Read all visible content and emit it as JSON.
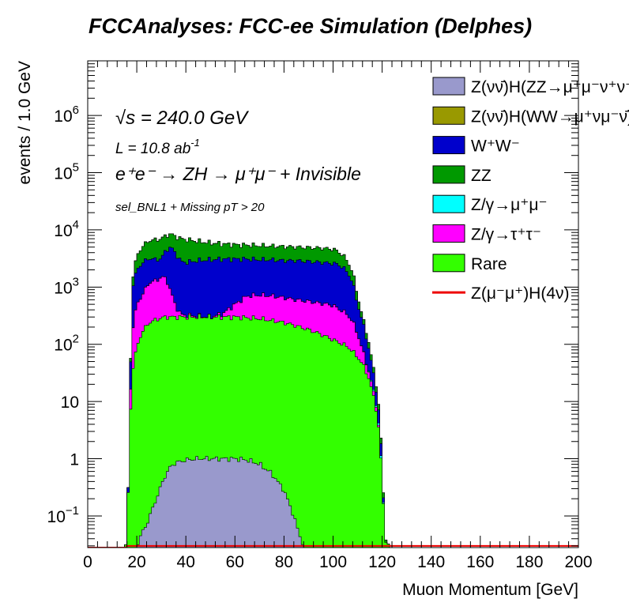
{
  "title": "FCCAnalyses: FCC-ee Simulation (Delphes)",
  "chart_data": {
    "type": "stacked-histogram",
    "xlabel": "Muon Momentum [GeV]",
    "ylabel": "events / 1.0 GeV",
    "xlim": [
      0,
      200
    ],
    "ylim": [
      0.028,
      9000000
    ],
    "yscale": "log",
    "x_ticks": [
      "0",
      "20",
      "40",
      "60",
      "80",
      "100",
      "120",
      "140",
      "160",
      "180",
      "200"
    ],
    "y_ticks": [
      {
        "value": 0.1,
        "base": "10",
        "exp": "−1"
      },
      {
        "value": 1,
        "base": "1",
        "exp": ""
      },
      {
        "value": 10,
        "base": "10",
        "exp": ""
      },
      {
        "value": 100,
        "base": "10",
        "exp": "2"
      },
      {
        "value": 1000,
        "base": "10",
        "exp": "3"
      },
      {
        "value": 10000,
        "base": "10",
        "exp": "4"
      },
      {
        "value": 100000,
        "base": "10",
        "exp": "5"
      },
      {
        "value": 1000000,
        "base": "10",
        "exp": "6"
      }
    ],
    "annotations": {
      "sqrt_s": "√s = 240.0 GeV",
      "lumi": "L = 10.8 ab",
      "lumi_exp": "-1",
      "process": "e⁺e⁻ → ZH → μ⁺μ⁻ + Invisible",
      "selection": "sel_BNL1 + Missing pT > 20"
    },
    "x_nodes": [
      16,
      17,
      18,
      20,
      22,
      25,
      28,
      30,
      32,
      34,
      36,
      38,
      40,
      45,
      50,
      55,
      60,
      65,
      70,
      75,
      80,
      85,
      90,
      95,
      100,
      102,
      104,
      106,
      108,
      110,
      112,
      114,
      116,
      118,
      119,
      120,
      121,
      122
    ],
    "stack_tops": [
      {
        "name": "Rare",
        "color": "#33ff00",
        "values": [
          0.03,
          2,
          30,
          90,
          160,
          240,
          270,
          290,
          300,
          300,
          300,
          300,
          300,
          300,
          300,
          300,
          300,
          290,
          280,
          260,
          240,
          210,
          180,
          150,
          120,
          110,
          100,
          90,
          75,
          60,
          45,
          30,
          15,
          6,
          2,
          0.5,
          0.05,
          0.03
        ]
      },
      {
        "name": "Z/γ→τ⁺τ⁻",
        "color": "#ff00ff",
        "values": [
          0.03,
          2,
          150,
          500,
          700,
          1200,
          1300,
          1500,
          1400,
          800,
          450,
          330,
          320,
          310,
          300,
          340,
          500,
          700,
          720,
          700,
          650,
          600,
          560,
          520,
          480,
          420,
          380,
          320,
          250,
          150,
          80,
          40,
          18,
          7,
          2,
          0.5,
          0.05,
          0.03
        ]
      },
      {
        "name": "Z/γ→μ⁺μ⁻",
        "color": "#00ffff",
        "values": [
          0.03,
          2,
          151,
          501,
          701,
          1201,
          1301,
          1501,
          1401,
          801,
          451,
          331,
          321,
          311,
          301,
          341,
          501,
          701,
          721,
          701,
          651,
          601,
          561,
          521,
          481,
          421,
          381,
          321,
          251,
          151,
          81,
          41,
          19,
          7.5,
          2.2,
          0.55,
          0.05,
          0.03
        ]
      },
      {
        "name": "W⁺W⁻",
        "color": "#0000cc",
        "values": [
          0.03,
          3,
          900,
          2000,
          2600,
          3200,
          3000,
          3200,
          4500,
          5000,
          3800,
          2800,
          2700,
          2900,
          3000,
          3100,
          3100,
          3100,
          3000,
          3000,
          2900,
          2900,
          2800,
          2700,
          2600,
          2500,
          2200,
          1800,
          1200,
          500,
          250,
          110,
          40,
          12,
          4,
          0.8,
          0.05,
          0.03
        ]
      },
      {
        "name": "ZZ",
        "color": "#009900",
        "values": [
          0.03,
          3,
          1200,
          3500,
          5000,
          6500,
          6700,
          7000,
          8000,
          8500,
          7600,
          7000,
          6800,
          6300,
          5900,
          5700,
          5500,
          5400,
          5300,
          5200,
          5100,
          5000,
          4900,
          4800,
          4600,
          4200,
          3600,
          2800,
          1800,
          700,
          300,
          140,
          50,
          15,
          5,
          1,
          0.06,
          0.03
        ]
      },
      {
        "name": "Z(νν̄)H(WW→μ⁺νμ⁻ν̄)",
        "color": "#999900",
        "values": [
          0.03,
          3,
          1200,
          3500,
          5000,
          6500,
          6700,
          7000,
          8000,
          8500,
          7600,
          7000,
          6800,
          6300,
          5900,
          5700,
          5500,
          5400,
          5300,
          5200,
          5100,
          5000,
          4900,
          4800,
          4600,
          4200,
          3600,
          2800,
          1800,
          700,
          300,
          140,
          50,
          15,
          5,
          1,
          0.06,
          0.03
        ]
      },
      {
        "name": "Z(νν̄)H(ZZ→μ⁺μ⁻ν⁺ν⁻)",
        "color": "#9999cc",
        "values": [
          0.03,
          3,
          1200,
          3500,
          5000,
          6500,
          6700,
          7000,
          8000,
          8500,
          7600,
          7000,
          6800,
          6300,
          5900,
          5700,
          5500,
          5400,
          5300,
          5200,
          5100,
          5000,
          4900,
          4800,
          4600,
          4200,
          3600,
          2800,
          1800,
          700,
          300,
          140,
          50,
          15,
          5,
          1,
          0.06,
          0.03
        ]
      }
    ],
    "signal_hzz_component": {
      "x": [
        20,
        22,
        24,
        26,
        28,
        30,
        32,
        34,
        36,
        40,
        45,
        50,
        55,
        60,
        65,
        70,
        75,
        80,
        84,
        86,
        88
      ],
      "values": [
        0.03,
        0.05,
        0.07,
        0.12,
        0.2,
        0.35,
        0.55,
        0.75,
        0.85,
        0.95,
        1.0,
        1.0,
        1.0,
        1.0,
        0.95,
        0.8,
        0.55,
        0.28,
        0.1,
        0.05,
        0.03
      ]
    },
    "signal_line": {
      "name": "Z(μ⁻μ⁺)H(4ν)",
      "color": "#ee0000",
      "x": [
        0,
        15.5,
        16,
        200
      ],
      "values": [
        0.028,
        0.028,
        0.03,
        0.03
      ]
    },
    "legend": [
      {
        "label": "Z(νν̄)H(ZZ→μ⁺μ⁻ν⁺ν⁻)",
        "color": "#9999cc",
        "kind": "box"
      },
      {
        "label": "Z(νν̄)H(WW→μ⁺νμ⁻ν̄)",
        "color": "#999900",
        "kind": "box"
      },
      {
        "label": "W⁺W⁻",
        "color": "#0000cc",
        "kind": "box"
      },
      {
        "label": "ZZ",
        "color": "#009900",
        "kind": "box"
      },
      {
        "label": "Z/γ→μ⁺μ⁻",
        "color": "#00ffff",
        "kind": "box"
      },
      {
        "label": "Z/γ→τ⁺τ⁻",
        "color": "#ff00ff",
        "kind": "box"
      },
      {
        "label": "Rare",
        "color": "#33ff00",
        "kind": "box"
      },
      {
        "label": "Z(μ⁻μ⁺)H(4ν)",
        "color": "#ee0000",
        "kind": "line"
      }
    ]
  }
}
